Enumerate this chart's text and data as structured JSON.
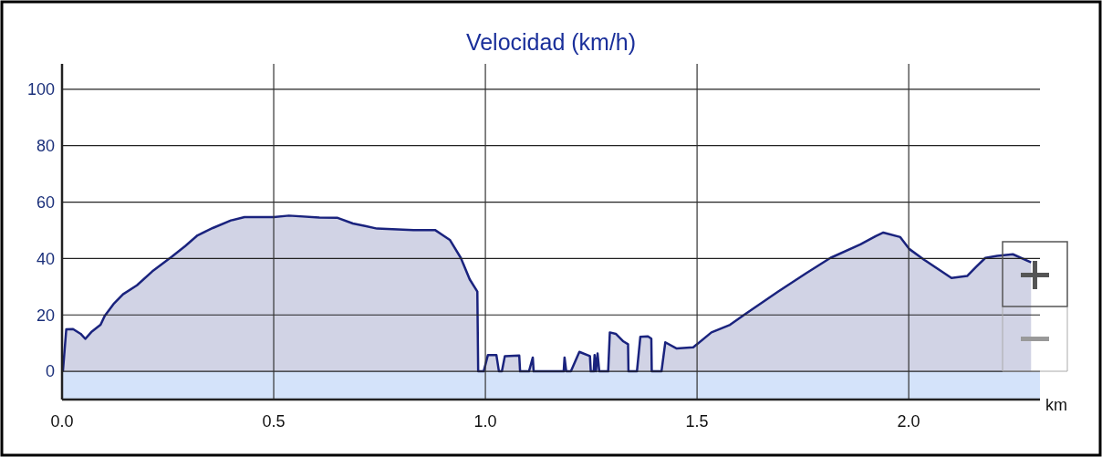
{
  "chart_data": {
    "type": "area",
    "title": "Velocidad (km/h)",
    "xlabel": "km",
    "x": [
      0.002,
      0.01,
      0.026,
      0.044,
      0.055,
      0.069,
      0.091,
      0.101,
      0.123,
      0.144,
      0.177,
      0.213,
      0.259,
      0.291,
      0.32,
      0.356,
      0.399,
      0.431,
      0.5,
      0.536,
      0.608,
      0.651,
      0.687,
      0.716,
      0.744,
      0.83,
      0.881,
      0.916,
      0.942,
      0.963,
      0.981,
      0.983,
      0.996,
      1.006,
      1.026,
      1.032,
      1.039,
      1.046,
      1.08,
      1.082,
      1.103,
      1.112,
      1.114,
      1.185,
      1.187,
      1.191,
      1.202,
      1.222,
      1.247,
      1.249,
      1.256,
      1.258,
      1.261,
      1.265,
      1.269,
      1.29,
      1.294,
      1.308,
      1.326,
      1.337,
      1.338,
      1.358,
      1.366,
      1.384,
      1.392,
      1.393,
      1.416,
      1.425,
      1.452,
      1.491,
      1.534,
      1.578,
      1.614,
      1.692,
      1.757,
      1.815,
      1.886,
      1.922,
      1.94,
      1.98,
      2.001,
      2.037,
      2.101,
      2.138,
      2.159,
      2.181,
      2.209,
      2.246,
      2.289
    ],
    "series": [
      {
        "color": "#1a237e",
        "values": [
          0,
          14.9,
          15,
          13.3,
          11.5,
          13.9,
          16.5,
          19.7,
          24.1,
          27.3,
          30.5,
          35.4,
          40.6,
          44.4,
          48.2,
          50.8,
          53.5,
          54.7,
          54.7,
          55.2,
          54.5,
          54.4,
          52.4,
          51.5,
          50.6,
          50.1,
          50.1,
          46.6,
          40.2,
          32.6,
          28.3,
          0,
          0,
          5.8,
          5.8,
          0,
          0,
          5.4,
          5.6,
          0,
          0,
          4.9,
          0,
          0,
          4.9,
          0,
          0,
          6.9,
          5.4,
          0,
          0,
          5.8,
          0,
          6.3,
          0,
          0,
          13.8,
          13.3,
          10.6,
          9.6,
          0,
          0,
          12.2,
          12.4,
          11.6,
          0,
          0,
          10.3,
          8.1,
          8.5,
          13.8,
          16.5,
          20.3,
          28.3,
          34.7,
          40.2,
          45.0,
          47.9,
          49.2,
          47.6,
          43.4,
          39.5,
          33.1,
          33.8,
          37,
          40.2,
          40.9,
          41.5,
          38.6
        ]
      }
    ],
    "xlim": [
      0,
      2.31
    ],
    "ylim": [
      -10,
      109
    ],
    "xticks": [
      {
        "value": 0,
        "label": "0.0"
      },
      {
        "value": 0.5,
        "label": "0.5"
      },
      {
        "value": 1,
        "label": "1.0"
      },
      {
        "value": 1.5,
        "label": "1.5"
      },
      {
        "value": 2,
        "label": "2.0"
      }
    ],
    "yticks": [
      0,
      20,
      40,
      60,
      80,
      100
    ],
    "bands": [
      {
        "axis": "y",
        "from": -10,
        "to": 0,
        "color": "#d4e3fa"
      }
    ],
    "grid": true
  }
}
